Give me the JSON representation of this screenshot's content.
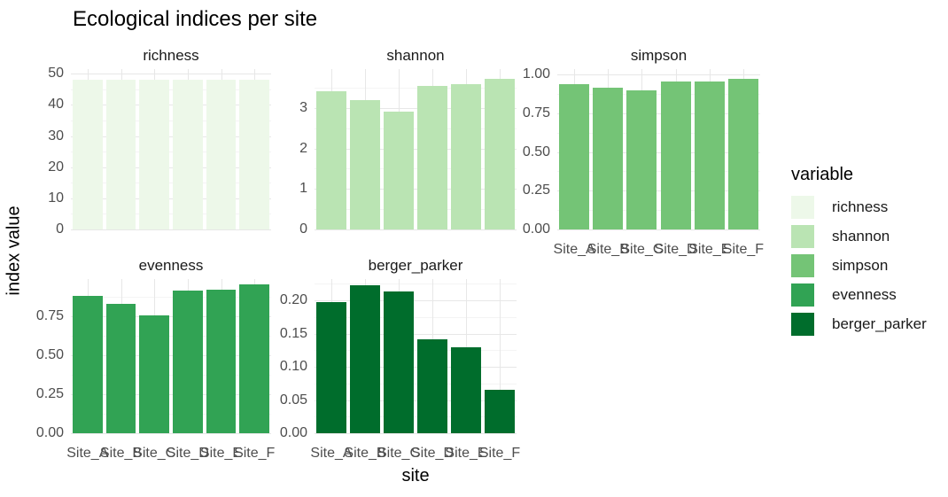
{
  "chart_data": {
    "type": "bar",
    "title": "Ecological indices per site",
    "xlabel": "site",
    "ylabel": "index value",
    "categories": [
      "Site_A",
      "Site_B",
      "Site_C",
      "Site_D",
      "Site_E",
      "Site_F"
    ],
    "grid": true,
    "panel_background": "#ffffff",
    "legend": {
      "title": "variable",
      "position": "right"
    },
    "facets": [
      {
        "name": "richness",
        "color": "#edf8e9",
        "values": [
          48,
          48,
          48,
          48,
          48,
          48
        ],
        "ylim": [
          0,
          51.5
        ],
        "yticks": [
          {
            "value": 0,
            "label": "0"
          },
          {
            "value": 10,
            "label": "10"
          },
          {
            "value": 20,
            "label": "20"
          },
          {
            "value": 30,
            "label": "30"
          },
          {
            "value": 40,
            "label": "40"
          },
          {
            "value": 50,
            "label": "50"
          }
        ],
        "minor_gridlines": [
          5,
          15,
          25,
          35,
          45
        ],
        "show_x_labels": false
      },
      {
        "name": "shannon",
        "color": "#bae4b3",
        "values": [
          3.42,
          3.2,
          2.91,
          3.55,
          3.58,
          3.71
        ],
        "ylim": [
          0,
          3.96
        ],
        "yticks": [
          {
            "value": 0,
            "label": "0"
          },
          {
            "value": 1,
            "label": "1"
          },
          {
            "value": 2,
            "label": "2"
          },
          {
            "value": 3,
            "label": "3"
          }
        ],
        "minor_gridlines": [
          0.5,
          1.5,
          2.5,
          3.5
        ],
        "show_x_labels": false
      },
      {
        "name": "simpson",
        "color": "#74c476",
        "values": [
          0.94,
          0.915,
          0.895,
          0.955,
          0.955,
          0.97
        ],
        "ylim": [
          0,
          1.034
        ],
        "yticks": [
          {
            "value": 0,
            "label": "0.00"
          },
          {
            "value": 0.25,
            "label": "0.25"
          },
          {
            "value": 0.5,
            "label": "0.50"
          },
          {
            "value": 0.75,
            "label": "0.75"
          },
          {
            "value": 1.0,
            "label": "1.00"
          }
        ],
        "minor_gridlines": [
          0.125,
          0.375,
          0.625,
          0.875
        ],
        "show_x_labels": true
      },
      {
        "name": "evenness",
        "color": "#31a354",
        "values": [
          0.88,
          0.83,
          0.755,
          0.915,
          0.92,
          0.955
        ],
        "ylim": [
          0,
          0.99
        ],
        "yticks": [
          {
            "value": 0,
            "label": "0.00"
          },
          {
            "value": 0.25,
            "label": "0.25"
          },
          {
            "value": 0.5,
            "label": "0.50"
          },
          {
            "value": 0.75,
            "label": "0.75"
          }
        ],
        "minor_gridlines": [
          0.125,
          0.375,
          0.625,
          0.875
        ],
        "show_x_labels": true
      },
      {
        "name": "berger_parker",
        "color": "#006d2c",
        "values": [
          0.198,
          0.223,
          0.213,
          0.141,
          0.13,
          0.065
        ],
        "ylim": [
          0,
          0.232
        ],
        "yticks": [
          {
            "value": 0,
            "label": "0.00"
          },
          {
            "value": 0.05,
            "label": "0.05"
          },
          {
            "value": 0.1,
            "label": "0.10"
          },
          {
            "value": 0.15,
            "label": "0.15"
          },
          {
            "value": 0.2,
            "label": "0.20"
          }
        ],
        "minor_gridlines": [
          0.025,
          0.075,
          0.125,
          0.175,
          0.225
        ],
        "show_x_labels": true
      }
    ]
  }
}
